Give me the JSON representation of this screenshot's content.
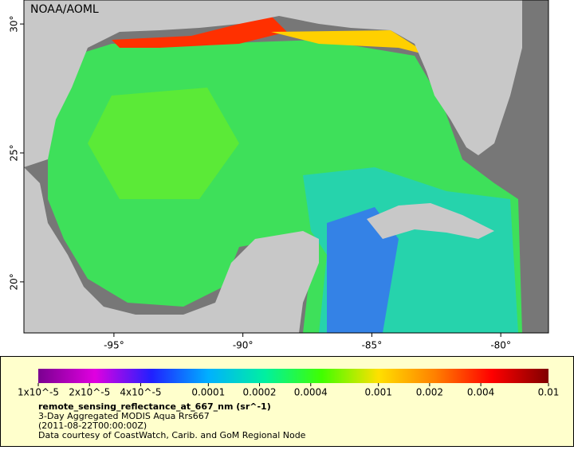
{
  "map": {
    "watermark": "NOAA/AOML",
    "xlim": [
      -98.49,
      -78.15
    ],
    "ylim": [
      18.02,
      30.93
    ],
    "xticks": [
      {
        "value": -95,
        "label": "-95°"
      },
      {
        "value": -90,
        "label": "-90°"
      },
      {
        "value": -85,
        "label": "-85°"
      },
      {
        "value": -80,
        "label": "-80°"
      }
    ],
    "yticks": [
      {
        "value": 20,
        "label": "20°"
      },
      {
        "value": 25,
        "label": "25°"
      },
      {
        "value": 30,
        "label": "30°"
      }
    ]
  },
  "legend": {
    "scale": "log",
    "lim": [
      1e-05,
      0.01
    ],
    "ticks": [
      {
        "value": 1e-05,
        "label": "1x10^-5"
      },
      {
        "value": 2e-05,
        "label": "2x10^-5"
      },
      {
        "value": 4e-05,
        "label": "4x10^-5"
      },
      0.0001,
      0.0002,
      0.0004,
      0.001,
      0.002,
      0.004,
      0.01
    ],
    "colors": [
      "#7a0090",
      "#e000e0",
      "#2020ff",
      "#00b0ff",
      "#00f0a0",
      "#40ff00",
      "#ffe000",
      "#ff8000",
      "#ff0000",
      "#800000"
    ],
    "title": "remote_sensing_reflectance_at_667_nm (sr^-1)",
    "lines": [
      "3-Day Aggregated MODIS Aqua Rrs667",
      "(2011-08-22T00:00:00Z)",
      "Data courtesy of CoastWatch, Carib. and GoM Regional Node"
    ]
  }
}
